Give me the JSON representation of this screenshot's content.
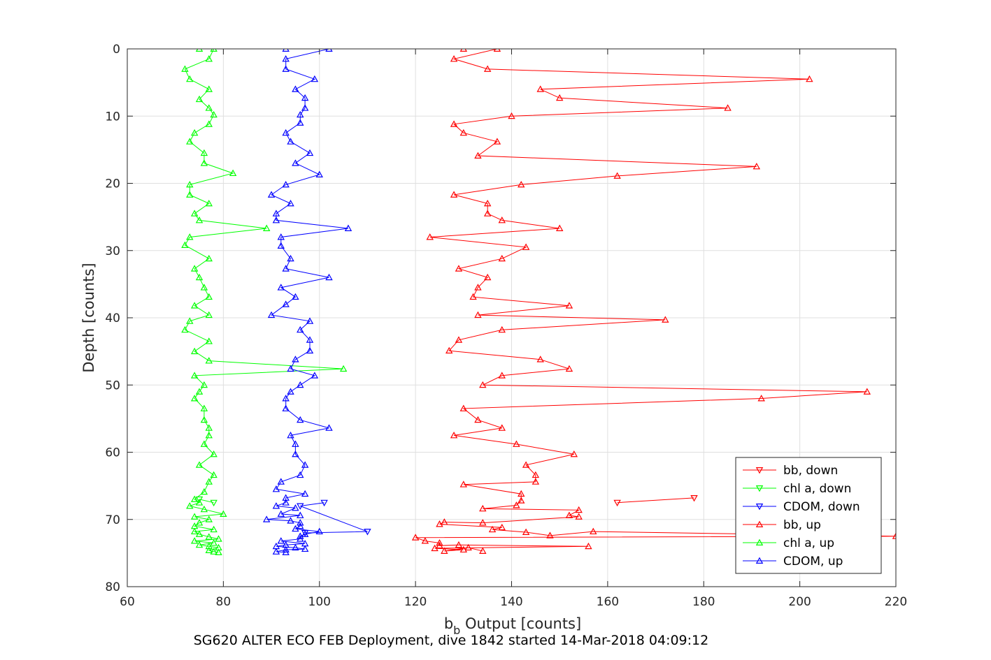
{
  "chart_data": {
    "type": "line",
    "xlabel_main": "b",
    "xlabel_sub": "b",
    "xlabel_rest": " Output [counts]",
    "ylabel": "Depth [counts]",
    "footer": "SG620 ALTER ECO FEB Deployment, dive 1842 started 14-Mar-2018 04:09:12",
    "xlim": [
      60,
      220
    ],
    "ylim": [
      0,
      80
    ],
    "y_reversed": true,
    "grid": true,
    "legend_position": "lower-right",
    "x_ticks": [
      "60",
      "80",
      "100",
      "120",
      "140",
      "160",
      "180",
      "200",
      "220"
    ],
    "y_ticks": [
      "0",
      "10",
      "20",
      "30",
      "40",
      "50",
      "60",
      "70",
      "80"
    ],
    "series": [
      {
        "name": "bb, down",
        "color": "#ff0000",
        "marker": "triangle-down",
        "points": [
          [
            178,
            66.8
          ],
          [
            162,
            67.5
          ]
        ]
      },
      {
        "name": "chl a, down",
        "color": "#00ff00",
        "marker": "triangle-down",
        "points": [
          [
            75,
            67
          ],
          [
            78,
            67.5
          ]
        ]
      },
      {
        "name": "CDOM, down",
        "color": "#0000ff",
        "marker": "triangle-down",
        "points": [
          [
            101,
            67.5
          ],
          [
            96,
            68
          ],
          [
            110,
            71.8
          ],
          [
            97,
            72
          ]
        ]
      },
      {
        "name": "bb, up",
        "color": "#ff0000",
        "marker": "triangle-up",
        "points": [
          [
            130,
            0
          ],
          [
            137,
            0
          ],
          [
            128,
            1.5
          ],
          [
            135,
            3
          ],
          [
            202,
            4.5
          ],
          [
            146,
            6
          ],
          [
            150,
            7.3
          ],
          [
            185,
            8.8
          ],
          [
            140,
            10
          ],
          [
            128,
            11.2
          ],
          [
            130,
            12.5
          ],
          [
            137,
            13.8
          ],
          [
            133,
            15.9
          ],
          [
            191,
            17.5
          ],
          [
            162,
            18.9
          ],
          [
            142,
            20.2
          ],
          [
            128,
            21.7
          ],
          [
            135,
            23
          ],
          [
            135,
            24.5
          ],
          [
            138,
            25.5
          ],
          [
            150,
            26.7
          ],
          [
            123,
            28
          ],
          [
            143,
            29.5
          ],
          [
            138,
            31.2
          ],
          [
            129,
            32.7
          ],
          [
            135,
            34
          ],
          [
            133,
            35.5
          ],
          [
            132,
            36.9
          ],
          [
            152,
            38.2
          ],
          [
            133,
            39.6
          ],
          [
            172,
            40.3
          ],
          [
            138,
            41.8
          ],
          [
            129,
            43.3
          ],
          [
            127,
            44.9
          ],
          [
            146,
            46.2
          ],
          [
            152,
            47.6
          ],
          [
            138,
            48.6
          ],
          [
            134,
            50
          ],
          [
            214,
            51
          ],
          [
            192,
            52
          ],
          [
            130,
            53.5
          ],
          [
            133,
            55.2
          ],
          [
            138,
            56.4
          ],
          [
            128,
            57.5
          ],
          [
            141,
            58.8
          ],
          [
            153,
            60.3
          ],
          [
            143,
            61.9
          ],
          [
            145,
            63.4
          ],
          [
            145,
            64.4
          ],
          [
            130,
            64.8
          ],
          [
            142,
            66.2
          ],
          [
            142,
            67.2
          ],
          [
            141,
            67.9
          ],
          [
            134,
            68.4
          ],
          [
            154,
            68.6
          ],
          [
            152,
            69.4
          ],
          [
            154,
            69.6
          ],
          [
            134,
            70.5
          ],
          [
            126,
            70.4
          ],
          [
            125,
            70.7
          ],
          [
            138,
            71.2
          ],
          [
            136,
            71.5
          ],
          [
            143,
            71.9
          ],
          [
            148,
            72.4
          ],
          [
            157,
            71.8
          ],
          [
            220,
            72.5
          ],
          [
            120,
            72.7
          ],
          [
            122,
            73.2
          ],
          [
            125,
            73.5
          ],
          [
            125,
            73.9
          ],
          [
            129,
            73.8
          ],
          [
            156,
            74
          ],
          [
            124,
            74.3
          ],
          [
            130,
            74.5
          ],
          [
            126,
            74.7
          ],
          [
            131,
            74.2
          ],
          [
            134,
            74.7
          ]
        ]
      },
      {
        "name": "chl a, up",
        "color": "#00ff00",
        "marker": "triangle-up",
        "points": [
          [
            75,
            0
          ],
          [
            78,
            0
          ],
          [
            77,
            1.5
          ],
          [
            72,
            3
          ],
          [
            73,
            4.5
          ],
          [
            77,
            6
          ],
          [
            75,
            7.5
          ],
          [
            77,
            8.8
          ],
          [
            78,
            9.8
          ],
          [
            77,
            11.2
          ],
          [
            74,
            12.5
          ],
          [
            73,
            13.8
          ],
          [
            76,
            15.5
          ],
          [
            76,
            17
          ],
          [
            82,
            18.5
          ],
          [
            73,
            20.2
          ],
          [
            73,
            21.7
          ],
          [
            77,
            23
          ],
          [
            74,
            24.5
          ],
          [
            75,
            25.5
          ],
          [
            89,
            26.7
          ],
          [
            73,
            28
          ],
          [
            72,
            29.2
          ],
          [
            77,
            31.2
          ],
          [
            74,
            32.7
          ],
          [
            75,
            34
          ],
          [
            76,
            35.5
          ],
          [
            77,
            36.9
          ],
          [
            74,
            38.2
          ],
          [
            77,
            39.6
          ],
          [
            73,
            40.5
          ],
          [
            72,
            41.8
          ],
          [
            77,
            43.5
          ],
          [
            74,
            45
          ],
          [
            77,
            46.4
          ],
          [
            105,
            47.6
          ],
          [
            74,
            48.6
          ],
          [
            76,
            50
          ],
          [
            75,
            51
          ],
          [
            74,
            52
          ],
          [
            76,
            53.5
          ],
          [
            76,
            55.2
          ],
          [
            77,
            56.4
          ],
          [
            77,
            57.5
          ],
          [
            76,
            58.8
          ],
          [
            78,
            60.3
          ],
          [
            75,
            61.9
          ],
          [
            78,
            63.4
          ],
          [
            77,
            64.4
          ],
          [
            76,
            65.9
          ],
          [
            74,
            67
          ],
          [
            75,
            67.5
          ],
          [
            73,
            68
          ],
          [
            76,
            68.5
          ],
          [
            80,
            69.2
          ],
          [
            74,
            69.6
          ],
          [
            77,
            70
          ],
          [
            75,
            70.5
          ],
          [
            74,
            71
          ],
          [
            78,
            71.5
          ],
          [
            74,
            71.8
          ],
          [
            75,
            72.2
          ],
          [
            77,
            72.6
          ],
          [
            79,
            72.9
          ],
          [
            74,
            73.2
          ],
          [
            78,
            73.5
          ],
          [
            75,
            73.8
          ],
          [
            77,
            74
          ],
          [
            79,
            74.2
          ],
          [
            77,
            74.6
          ],
          [
            78,
            74.8
          ],
          [
            79,
            74.9
          ]
        ]
      },
      {
        "name": "CDOM, up",
        "color": "#0000ff",
        "marker": "triangle-up",
        "points": [
          [
            93,
            0
          ],
          [
            102,
            0
          ],
          [
            93,
            1.5
          ],
          [
            93,
            3
          ],
          [
            99,
            4.5
          ],
          [
            95,
            6
          ],
          [
            97,
            7.3
          ],
          [
            97,
            8.8
          ],
          [
            96,
            9.8
          ],
          [
            96,
            11
          ],
          [
            93,
            12.5
          ],
          [
            94,
            13.8
          ],
          [
            98,
            15.5
          ],
          [
            95,
            17
          ],
          [
            100,
            18.7
          ],
          [
            93,
            20.2
          ],
          [
            90,
            21.7
          ],
          [
            94,
            23
          ],
          [
            91,
            24.5
          ],
          [
            91,
            25.5
          ],
          [
            106,
            26.7
          ],
          [
            92,
            28
          ],
          [
            92,
            29.3
          ],
          [
            94,
            31.2
          ],
          [
            93,
            32.7
          ],
          [
            102,
            34
          ],
          [
            92,
            35.5
          ],
          [
            95,
            36.9
          ],
          [
            93,
            38
          ],
          [
            90,
            39.6
          ],
          [
            98,
            40.5
          ],
          [
            96,
            41.8
          ],
          [
            98,
            43.3
          ],
          [
            98,
            44.9
          ],
          [
            95,
            46.2
          ],
          [
            94,
            47.6
          ],
          [
            99,
            48.6
          ],
          [
            96,
            50
          ],
          [
            94,
            51
          ],
          [
            93,
            52
          ],
          [
            93,
            53.5
          ],
          [
            96,
            55.2
          ],
          [
            102,
            56.4
          ],
          [
            94,
            57.5
          ],
          [
            95,
            58.8
          ],
          [
            95,
            60.3
          ],
          [
            97,
            61.9
          ],
          [
            96,
            63.4
          ],
          [
            92,
            64.4
          ],
          [
            91,
            65.5
          ],
          [
            97,
            66.2
          ],
          [
            93,
            66.8
          ],
          [
            93,
            67.5
          ],
          [
            91,
            68
          ],
          [
            95,
            68.3
          ],
          [
            92,
            69.2
          ],
          [
            96,
            69.4
          ],
          [
            89,
            70
          ],
          [
            94,
            70.2
          ],
          [
            96,
            70.5
          ],
          [
            96,
            71
          ],
          [
            95,
            71.4
          ],
          [
            100,
            71.8
          ],
          [
            97,
            72.2
          ],
          [
            96,
            72.5
          ],
          [
            96,
            72.9
          ],
          [
            92,
            73.2
          ],
          [
            97,
            73.6
          ],
          [
            93,
            73.8
          ],
          [
            91,
            74
          ],
          [
            95,
            74.2
          ],
          [
            97,
            74.4
          ],
          [
            93,
            74.5
          ],
          [
            91,
            74.8
          ],
          [
            93,
            74.9
          ]
        ]
      }
    ]
  }
}
